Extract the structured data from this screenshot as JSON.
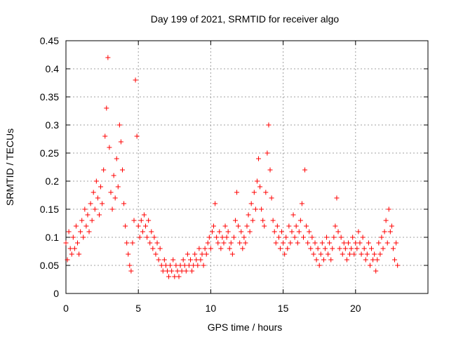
{
  "chart_data": {
    "type": "scatter",
    "title": "Day 199 of 2021, SRMTID for receiver algo",
    "xlabel": "GPS time / hours",
    "ylabel": "SRMTID / TECUs",
    "xlim": [
      0,
      25
    ],
    "ylim": [
      0,
      0.45
    ],
    "xticks": [
      0,
      5,
      10,
      15,
      20
    ],
    "yticks": [
      0,
      0.05,
      0.1,
      0.15,
      0.2,
      0.25,
      0.3,
      0.35,
      0.4,
      0.45
    ],
    "xtick_labels": [
      "0",
      "5",
      "10",
      "15",
      "20"
    ],
    "ytick_labels": [
      "0",
      "0.05",
      "0.1",
      "0.15",
      "0.2",
      "0.25",
      "0.3",
      "0.35",
      "0.4",
      "0.45"
    ],
    "grid": true,
    "marker": "+",
    "color": "#ff0000",
    "series": [
      {
        "name": "SRMTID",
        "x": [
          0.0,
          0.1,
          0.2,
          0.3,
          0.4,
          0.5,
          0.6,
          0.7,
          0.8,
          0.9,
          1.0,
          1.1,
          1.2,
          1.3,
          1.4,
          1.5,
          1.6,
          1.7,
          1.8,
          1.9,
          2.0,
          2.1,
          2.2,
          2.3,
          2.4,
          2.5,
          2.6,
          2.7,
          2.8,
          2.9,
          3.0,
          3.1,
          3.2,
          3.3,
          3.4,
          3.5,
          3.6,
          3.7,
          3.8,
          3.9,
          4.0,
          4.1,
          4.2,
          4.3,
          4.4,
          4.5,
          4.6,
          4.7,
          4.8,
          4.9,
          5.0,
          5.1,
          5.2,
          5.3,
          5.4,
          5.5,
          5.6,
          5.7,
          5.8,
          5.9,
          6.0,
          6.1,
          6.2,
          6.3,
          6.4,
          6.5,
          6.6,
          6.7,
          6.8,
          6.9,
          7.0,
          7.1,
          7.2,
          7.3,
          7.4,
          7.5,
          7.6,
          7.7,
          7.8,
          7.9,
          8.0,
          8.1,
          8.2,
          8.3,
          8.4,
          8.5,
          8.6,
          8.7,
          8.8,
          8.9,
          9.0,
          9.1,
          9.2,
          9.3,
          9.4,
          9.5,
          9.6,
          9.7,
          9.8,
          9.9,
          10.0,
          10.1,
          10.2,
          10.3,
          10.4,
          10.5,
          10.6,
          10.7,
          10.8,
          10.9,
          11.0,
          11.1,
          11.2,
          11.3,
          11.4,
          11.5,
          11.6,
          11.7,
          11.8,
          11.9,
          12.0,
          12.1,
          12.2,
          12.3,
          12.4,
          12.5,
          12.6,
          12.7,
          12.8,
          12.9,
          13.0,
          13.1,
          13.2,
          13.3,
          13.4,
          13.5,
          13.6,
          13.7,
          13.8,
          13.9,
          14.0,
          14.1,
          14.2,
          14.3,
          14.4,
          14.5,
          14.6,
          14.7,
          14.8,
          14.9,
          15.0,
          15.1,
          15.2,
          15.3,
          15.4,
          15.5,
          15.6,
          15.7,
          15.8,
          15.9,
          16.0,
          16.1,
          16.2,
          16.3,
          16.4,
          16.5,
          16.6,
          16.7,
          16.8,
          16.9,
          17.0,
          17.1,
          17.2,
          17.3,
          17.4,
          17.5,
          17.6,
          17.7,
          17.8,
          17.9,
          18.0,
          18.1,
          18.2,
          18.3,
          18.4,
          18.5,
          18.6,
          18.7,
          18.8,
          18.9,
          19.0,
          19.1,
          19.2,
          19.3,
          19.4,
          19.5,
          19.6,
          19.7,
          19.8,
          19.9,
          20.0,
          20.1,
          20.2,
          20.3,
          20.4,
          20.5,
          20.6,
          20.7,
          20.8,
          20.9,
          21.0,
          21.1,
          21.2,
          21.3,
          21.4,
          21.5,
          21.6,
          21.7,
          21.8,
          21.9,
          22.0,
          22.1,
          22.2,
          22.3,
          22.4,
          22.5,
          22.6,
          22.7,
          22.8,
          22.9
        ],
        "y": [
          0.09,
          0.06,
          0.11,
          0.08,
          0.07,
          0.1,
          0.08,
          0.12,
          0.09,
          0.07,
          0.11,
          0.13,
          0.1,
          0.15,
          0.12,
          0.14,
          0.11,
          0.16,
          0.13,
          0.18,
          0.15,
          0.2,
          0.17,
          0.14,
          0.19,
          0.16,
          0.22,
          0.28,
          0.33,
          0.42,
          0.26,
          0.18,
          0.15,
          0.21,
          0.17,
          0.24,
          0.19,
          0.3,
          0.27,
          0.22,
          0.16,
          0.12,
          0.09,
          0.07,
          0.05,
          0.04,
          0.09,
          0.13,
          0.38,
          0.28,
          0.12,
          0.1,
          0.13,
          0.11,
          0.14,
          0.12,
          0.1,
          0.13,
          0.09,
          0.11,
          0.08,
          0.1,
          0.07,
          0.09,
          0.06,
          0.08,
          0.05,
          0.04,
          0.06,
          0.05,
          0.04,
          0.03,
          0.05,
          0.04,
          0.06,
          0.03,
          0.05,
          0.04,
          0.03,
          0.05,
          0.04,
          0.06,
          0.05,
          0.04,
          0.07,
          0.05,
          0.06,
          0.04,
          0.05,
          0.07,
          0.06,
          0.05,
          0.08,
          0.06,
          0.07,
          0.05,
          0.08,
          0.07,
          0.09,
          0.1,
          0.08,
          0.11,
          0.12,
          0.16,
          0.1,
          0.09,
          0.11,
          0.08,
          0.1,
          0.09,
          0.12,
          0.1,
          0.11,
          0.08,
          0.09,
          0.07,
          0.1,
          0.13,
          0.18,
          0.12,
          0.09,
          0.11,
          0.08,
          0.1,
          0.09,
          0.12,
          0.14,
          0.11,
          0.16,
          0.13,
          0.18,
          0.15,
          0.2,
          0.24,
          0.19,
          0.15,
          0.13,
          0.12,
          0.18,
          0.25,
          0.3,
          0.22,
          0.17,
          0.13,
          0.11,
          0.09,
          0.12,
          0.1,
          0.08,
          0.11,
          0.09,
          0.07,
          0.1,
          0.08,
          0.12,
          0.09,
          0.11,
          0.14,
          0.1,
          0.12,
          0.09,
          0.11,
          0.13,
          0.16,
          0.1,
          0.22,
          0.12,
          0.09,
          0.11,
          0.08,
          0.1,
          0.07,
          0.09,
          0.06,
          0.08,
          0.05,
          0.07,
          0.09,
          0.06,
          0.08,
          0.1,
          0.07,
          0.09,
          0.06,
          0.08,
          0.1,
          0.12,
          0.17,
          0.11,
          0.08,
          0.1,
          0.07,
          0.09,
          0.08,
          0.06,
          0.09,
          0.07,
          0.08,
          0.1,
          0.07,
          0.09,
          0.08,
          0.11,
          0.09,
          0.07,
          0.1,
          0.08,
          0.06,
          0.07,
          0.09,
          0.05,
          0.08,
          0.06,
          0.07,
          0.04,
          0.06,
          0.09,
          0.07,
          0.1,
          0.08,
          0.11,
          0.13,
          0.09,
          0.15,
          0.11,
          0.12,
          0.08,
          0.06,
          0.09,
          0.05
        ]
      }
    ]
  }
}
